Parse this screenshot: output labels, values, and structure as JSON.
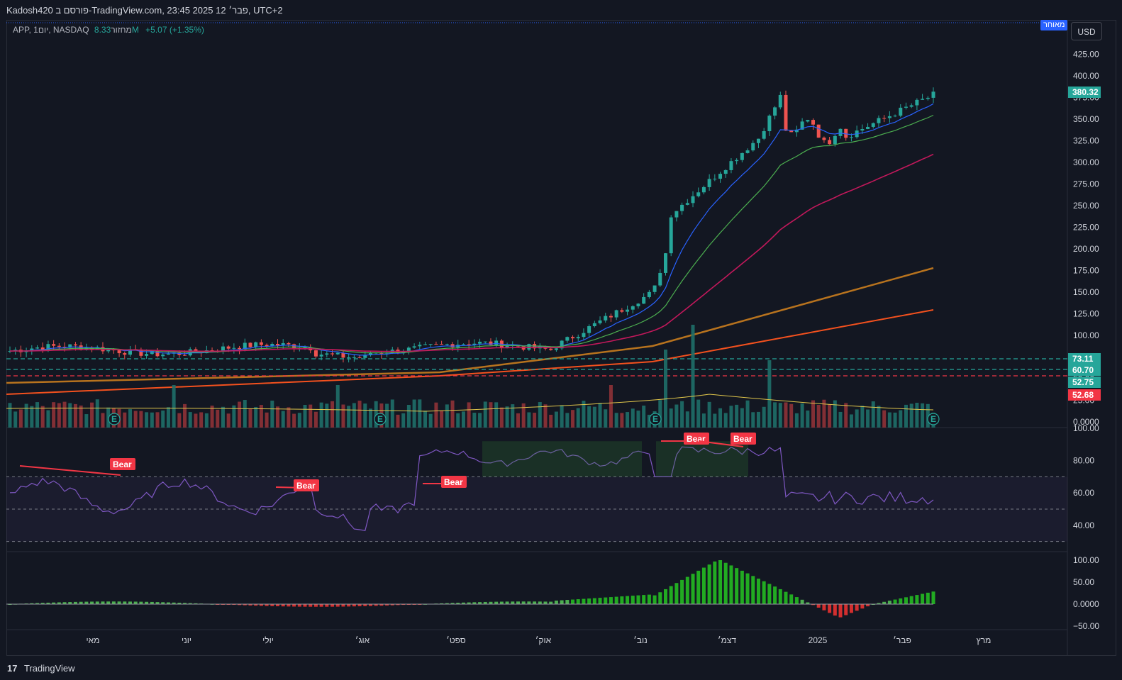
{
  "header": {
    "published_text": "Kadosh420 פורסם ב-TradingView.com, 23:45 2025 פבר׳ 12, UTC+2"
  },
  "legend": {
    "symbol_text": "APP, 1יום, NASDAQ",
    "volume_label": "מחזור",
    "volume_value": "8.33M",
    "change": "+5.07 (+1.35%)"
  },
  "badges": {
    "delayed": "מאוחר",
    "currency": "USD"
  },
  "price_axis": {
    "ticks": [
      "425.00",
      "400.00",
      "375.00",
      "350.00",
      "325.00",
      "300.00",
      "275.00",
      "250.00",
      "225.00",
      "200.00",
      "175.00",
      "150.00",
      "125.00",
      "100.00",
      "75.00",
      "50.00",
      "25.00",
      "0.0000"
    ],
    "last_price": "380.32",
    "levels": [
      {
        "label": "73.11",
        "color": "#26a69a"
      },
      {
        "label": "60.70",
        "color": "#26a69a"
      },
      {
        "label": "52.75",
        "color": "#26a69a"
      },
      {
        "label": "52.68",
        "color": "#f23645"
      }
    ]
  },
  "rsi_axis": {
    "ticks": [
      "100.00",
      "80.00",
      "60.00",
      "40.00"
    ]
  },
  "osc_axis": {
    "ticks": [
      "100.00",
      "50.00",
      "0.0000",
      "−50.00"
    ]
  },
  "time_axis": {
    "labels": [
      "מאי",
      "יוני",
      "יולי",
      "אוג׳",
      "ספט׳",
      "אוק׳",
      "נוב׳",
      "דצמ׳",
      "2025",
      "פבר׳",
      "מרץ"
    ]
  },
  "annotations": {
    "bear_labels": [
      "Bear",
      "Bear",
      "Bear",
      "Bear",
      "Bear"
    ],
    "earnings_marker": "E"
  },
  "footer": {
    "brand": "TradingView",
    "logo": "17"
  },
  "colors": {
    "up": "#26a69a",
    "down": "#ef5350",
    "ema_fast": "#2962ff",
    "ema_mid": "#4caf50",
    "ema_slow": "#c2185b",
    "sma_a": "#b8731e",
    "sma_b": "#f4511e",
    "rsi": "#7e57c2",
    "bear": "#f23645"
  }
}
